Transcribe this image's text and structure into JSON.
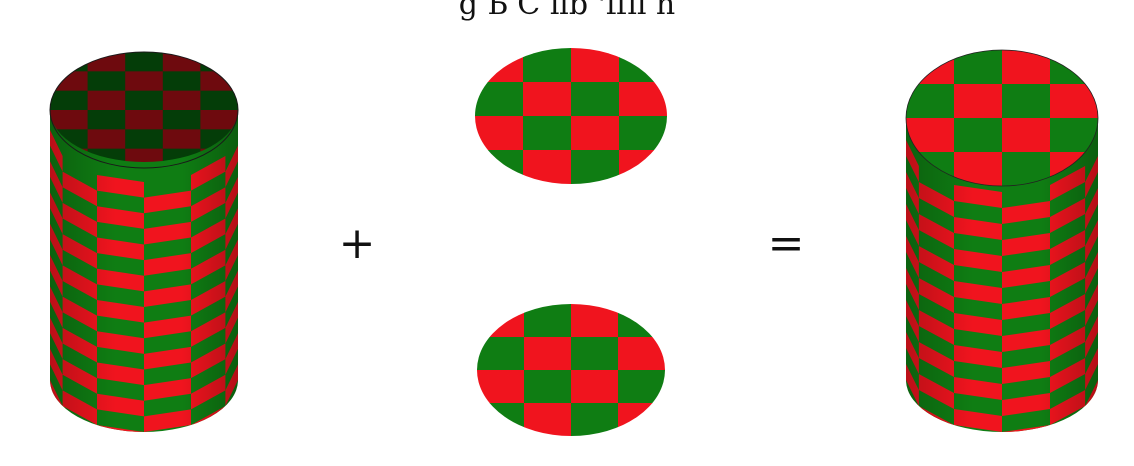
{
  "caption": "g        Ь  C  ilb         'ffii                   h",
  "operators": {
    "plus": "+",
    "equals": "="
  },
  "colors": {
    "red": "#f0141e",
    "green": "#0f7d13",
    "inner_red": "#6e0a0e",
    "inner_green": "#043d08",
    "background": "#ffffff"
  },
  "figures": {
    "open_cylinder": "open-cylinder",
    "top_disk": "top-disk",
    "bottom_disk": "bottom-disk",
    "closed_cylinder": "closed-cylinder"
  }
}
